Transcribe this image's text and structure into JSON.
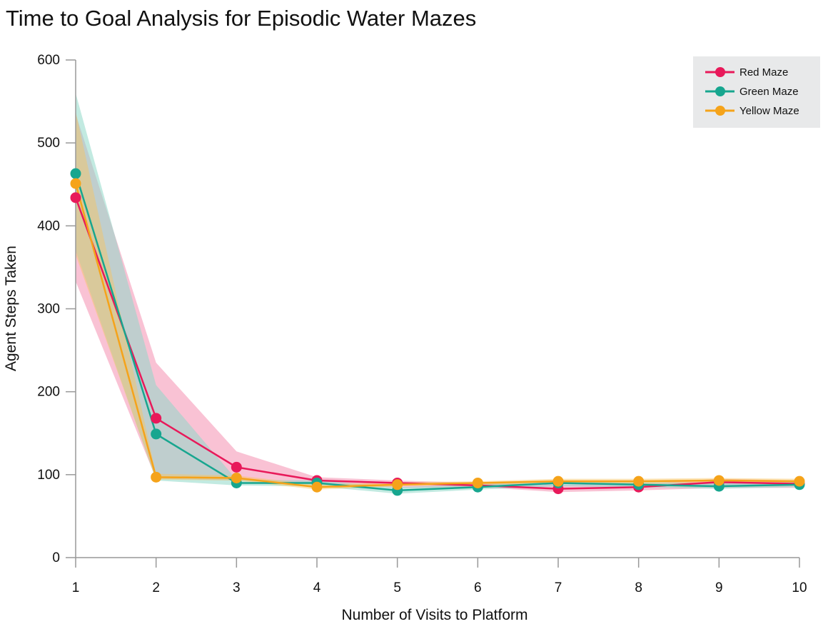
{
  "chart_data": {
    "type": "line",
    "title": "Time to Goal Analysis for Episodic Water Mazes",
    "xlabel": "Number of Visits to Platform",
    "ylabel": "Agent Steps Taken",
    "x": [
      1,
      2,
      3,
      4,
      5,
      6,
      7,
      8,
      9,
      10
    ],
    "xlim": [
      1,
      10
    ],
    "ylim": [
      0,
      600
    ],
    "yticks": [
      0,
      100,
      200,
      300,
      400,
      500,
      600
    ],
    "grid": false,
    "legend_position": "top-right",
    "series": [
      {
        "name": "Red Maze",
        "color": "#e8195a",
        "band_color": "#f48fb1",
        "values": [
          434,
          168,
          109,
          93,
          90,
          87,
          83,
          85,
          91,
          89
        ],
        "lower": [
          333,
          95,
          93,
          89,
          84,
          85,
          79,
          81,
          84,
          84
        ],
        "upper": [
          535,
          235,
          128,
          97,
          93,
          90,
          88,
          89,
          95,
          93
        ]
      },
      {
        "name": "Green Maze",
        "color": "#17a68f",
        "band_color": "#8fd8c9",
        "values": [
          463,
          149,
          90,
          90,
          81,
          85,
          90,
          88,
          86,
          88
        ],
        "lower": [
          370,
          93,
          87,
          86,
          77,
          82,
          86,
          85,
          83,
          85
        ],
        "upper": [
          560,
          208,
          94,
          93,
          85,
          88,
          93,
          91,
          90,
          91
        ]
      },
      {
        "name": "Yellow Maze",
        "color": "#f5a31a",
        "band_color": "#f8c35e",
        "values": [
          451,
          97,
          96,
          85,
          88,
          90,
          92,
          92,
          93,
          92
        ],
        "lower": [
          365,
          94,
          93,
          82,
          86,
          88,
          89,
          89,
          90,
          90
        ],
        "upper": [
          538,
          101,
          99,
          88,
          91,
          92,
          95,
          95,
          96,
          95
        ]
      }
    ]
  }
}
